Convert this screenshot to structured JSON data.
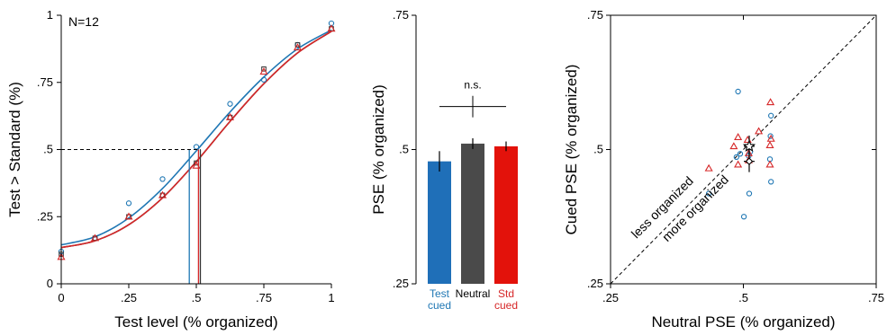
{
  "chart_data": [
    {
      "type": "line",
      "panel": "psychometric",
      "annotation": "N=12",
      "xlabel": "Test level (% organized)",
      "ylabel": "Test > Standard (%)",
      "xlim": [
        0,
        1
      ],
      "ylim": [
        0,
        1
      ],
      "x_ticks": [
        0,
        0.25,
        0.5,
        0.75,
        1
      ],
      "x_tick_labels": [
        "0",
        ".25",
        ".5",
        ".75",
        "1"
      ],
      "y_ticks": [
        0,
        0.25,
        0.5,
        0.75,
        1
      ],
      "y_tick_labels": [
        "0",
        ".25",
        ".5",
        ".75",
        "1"
      ],
      "reference_level": 0.5,
      "x": [
        0,
        0.125,
        0.25,
        0.375,
        0.5,
        0.625,
        0.75,
        0.875,
        1
      ],
      "series": [
        {
          "color": "#1f77b4",
          "marker": "circle",
          "values": [
            0.12,
            0.17,
            0.3,
            0.39,
            0.51,
            0.67,
            0.76,
            0.89,
            0.97
          ],
          "fit": [
            0.145,
            0.175,
            0.245,
            0.355,
            0.495,
            0.64,
            0.77,
            0.875,
            0.945
          ],
          "pse": 0.474
        },
        {
          "color": "#333333",
          "marker": "square",
          "values": [
            0.11,
            0.17,
            0.25,
            0.33,
            0.45,
            0.62,
            0.8,
            0.89,
            0.95
          ],
          "fit": [
            0.135,
            0.16,
            0.22,
            0.32,
            0.455,
            0.605,
            0.745,
            0.86,
            0.94
          ],
          "pse": 0.515
        },
        {
          "color": "#d62728",
          "marker": "triangle",
          "values": [
            0.1,
            0.17,
            0.25,
            0.33,
            0.44,
            0.62,
            0.79,
            0.88,
            0.95
          ],
          "fit": [
            0.135,
            0.16,
            0.22,
            0.32,
            0.455,
            0.605,
            0.745,
            0.86,
            0.94
          ],
          "pse": 0.508
        }
      ]
    },
    {
      "type": "bar",
      "panel": "pse-bars",
      "categories": [
        [
          "Test",
          "cued"
        ],
        [
          "Neutral"
        ],
        [
          "Std",
          "cued"
        ]
      ],
      "category_colors": [
        "#1f77b4",
        "#000000",
        "#d62728"
      ],
      "bar_colors": [
        "#1f6fb8",
        "#4a4a4a",
        "#e3120b"
      ],
      "values": [
        0.478,
        0.511,
        0.506
      ],
      "errors": [
        0.019,
        0.01,
        0.009
      ],
      "ylabel": "PSE (% organized)",
      "ylim": [
        0.25,
        0.75
      ],
      "y_ticks": [
        0.25,
        0.5,
        0.75
      ],
      "y_tick_labels": [
        ".25",
        ".5",
        ".75"
      ],
      "significance": {
        "label": "n.s.",
        "bar_y": 0.58,
        "cross_height": 0.02
      }
    },
    {
      "type": "scatter",
      "panel": "pse-scatter",
      "xlabel": "Neutral PSE (% organized)",
      "ylabel": "Cued PSE (% organized)",
      "xlim": [
        0.25,
        0.75
      ],
      "ylim": [
        0.25,
        0.75
      ],
      "ticks": [
        0.25,
        0.5,
        0.75
      ],
      "tick_labels": [
        ".25",
        ".5",
        ".75"
      ],
      "diagonal_labels": [
        "less organized",
        "more organized"
      ],
      "series": [
        {
          "color": "#1f77b4",
          "marker": "circle",
          "points": [
            [
              0.49,
              0.608
            ],
            [
              0.552,
              0.563
            ],
            [
              0.551,
              0.525
            ],
            [
              0.513,
              0.496
            ],
            [
              0.51,
              0.488
            ],
            [
              0.494,
              0.492
            ],
            [
              0.487,
              0.486
            ],
            [
              0.55,
              0.482
            ],
            [
              0.552,
              0.44
            ],
            [
              0.511,
              0.418
            ],
            [
              0.435,
              0.418
            ],
            [
              0.501,
              0.375
            ]
          ]
        },
        {
          "color": "#d62728",
          "marker": "triangle",
          "points": [
            [
              0.551,
              0.588
            ],
            [
              0.529,
              0.534
            ],
            [
              0.49,
              0.523
            ],
            [
              0.508,
              0.518
            ],
            [
              0.552,
              0.52
            ],
            [
              0.55,
              0.508
            ],
            [
              0.482,
              0.506
            ],
            [
              0.51,
              0.493
            ],
            [
              0.51,
              0.48
            ],
            [
              0.49,
              0.472
            ],
            [
              0.55,
              0.472
            ],
            [
              0.435,
              0.465
            ]
          ]
        }
      ],
      "summary": {
        "star": {
          "x": 0.511,
          "y": 0.506,
          "err": 0.02
        },
        "diamond": {
          "x": 0.511,
          "y": 0.478,
          "err": 0.02
        }
      }
    }
  ]
}
